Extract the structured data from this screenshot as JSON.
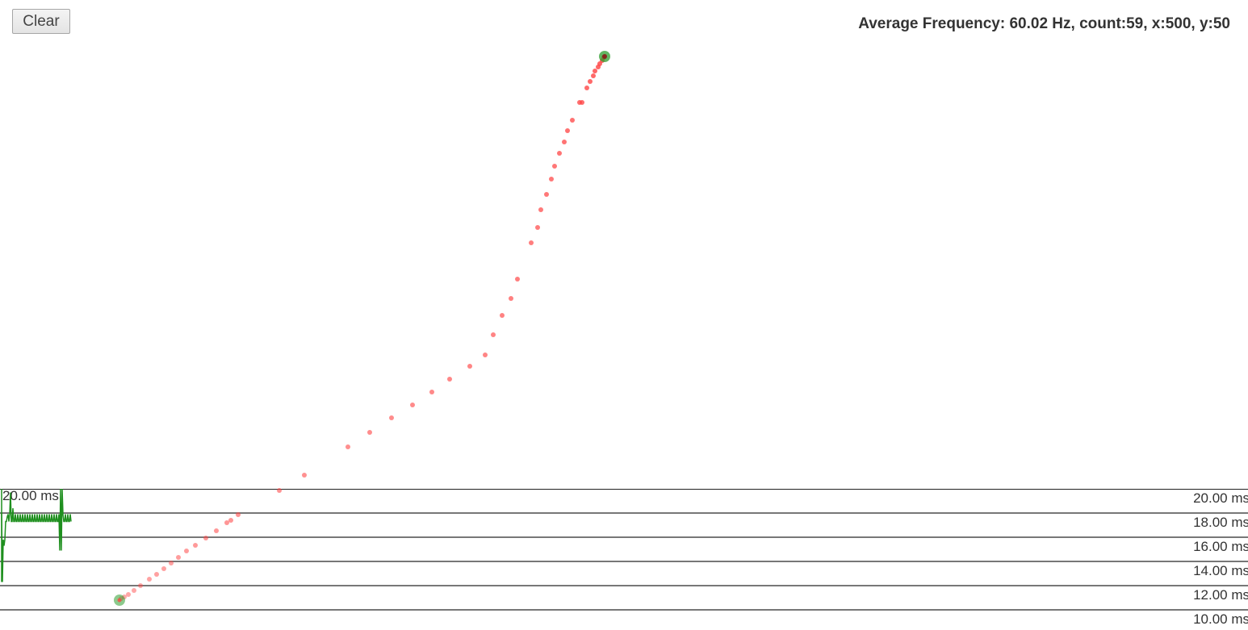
{
  "toolbar": {
    "clear_label": "Clear"
  },
  "status": {
    "text": "Average Frequency: 60.02 Hz, count:59, x:500, y:50"
  },
  "frame_graph": {
    "top_left_label": "20.00 ms",
    "gridlines": [
      {
        "label": "20.00 ms"
      },
      {
        "label": "18.00 ms"
      },
      {
        "label": "16.00 ms"
      },
      {
        "label": "14.00 ms"
      },
      {
        "label": "12.00 ms"
      },
      {
        "label": "10.00 ms"
      }
    ],
    "range_ms": [
      10,
      20
    ],
    "frame_times_ms": [
      18,
      12.3,
      15.8,
      15.3,
      15.8,
      17.3,
      17.3,
      17.7,
      17.9,
      17.3,
      17.9,
      19.7,
      17.3,
      17.3,
      18.4,
      17.3,
      17.3,
      17.9,
      17.3,
      17.3,
      17.9,
      17.3,
      17.3,
      17.9,
      17.3,
      17.3,
      17.9,
      17.3,
      17.3,
      17.9,
      17.3,
      17.3,
      17.9,
      17.3,
      17.3,
      17.9,
      17.3,
      17.3,
      17.9,
      17.3,
      17.3,
      17.9,
      17.3,
      17.3,
      17.9,
      17.3,
      17.3,
      17.9,
      17.3,
      17.3,
      17.9,
      17.3,
      17.3,
      17.9,
      17.3,
      17.3,
      17.9,
      17.3,
      17.3,
      17.9,
      17.3,
      17.3,
      17.9,
      17.3,
      17.3,
      17.9,
      17.3,
      17.3,
      17.9,
      17.3,
      17.3,
      17.9,
      14.9,
      20,
      14.9,
      20,
      17.9,
      17.3,
      17.3,
      17.9,
      17.3,
      17.3,
      17.9,
      17.3,
      17.3,
      17.9,
      17.3
    ],
    "colors": {
      "line": "#1e8f1e",
      "grid": "#777777",
      "frame_top": "#222222"
    }
  },
  "trail": {
    "start": [
      148,
      744
    ],
    "end": [
      749,
      70
    ],
    "points": [
      [
        150,
        742
      ],
      [
        154,
        740
      ],
      [
        159,
        737
      ],
      [
        166,
        732
      ],
      [
        174,
        726
      ],
      [
        185,
        718
      ],
      [
        194,
        712
      ],
      [
        203,
        705
      ],
      [
        212,
        698
      ],
      [
        221,
        691
      ],
      [
        231,
        683
      ],
      [
        242,
        676
      ],
      [
        255,
        667
      ],
      [
        268,
        658
      ],
      [
        281,
        648
      ],
      [
        286,
        645
      ],
      [
        295,
        638
      ],
      [
        346,
        608
      ],
      [
        377,
        589
      ],
      [
        431,
        554
      ],
      [
        458,
        536
      ],
      [
        485,
        518
      ],
      [
        511,
        502
      ],
      [
        535,
        486
      ],
      [
        557,
        470
      ],
      [
        582,
        454
      ],
      [
        601,
        440
      ],
      [
        611,
        415
      ],
      [
        622,
        391
      ],
      [
        633,
        370
      ],
      [
        641,
        346
      ],
      [
        658,
        301
      ],
      [
        666,
        282
      ],
      [
        670,
        260
      ],
      [
        677,
        241
      ],
      [
        683,
        222
      ],
      [
        687,
        206
      ],
      [
        693,
        190
      ],
      [
        699,
        176
      ],
      [
        703,
        162
      ],
      [
        709,
        149
      ],
      [
        718,
        127
      ],
      [
        721,
        127
      ],
      [
        727,
        109
      ],
      [
        731,
        101
      ],
      [
        735,
        94
      ],
      [
        737,
        88
      ],
      [
        741,
        83
      ],
      [
        743,
        79
      ],
      [
        746,
        75
      ],
      [
        748,
        71
      ]
    ],
    "colors": {
      "point": "#ff4444",
      "endpoint": "#2e9e2e"
    }
  }
}
